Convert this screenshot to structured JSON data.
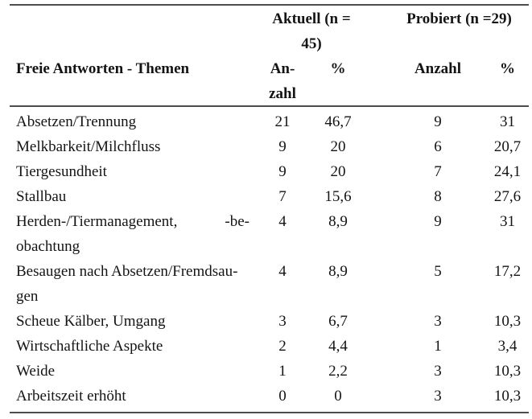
{
  "colors": {
    "border": "#4d4d4d",
    "text": "#141414",
    "background": "#ffffff"
  },
  "table": {
    "title_col_header": "Freie Antworten - Themen",
    "group_headers": {
      "aktuell": "Aktuell (n =\n45)",
      "probiert": "Probiert (n =29)"
    },
    "sub_headers": {
      "aktuell_anzahl": "An-\nzahl",
      "aktuell_pct": "%",
      "probiert_anzahl": "Anzahl",
      "probiert_pct": "%"
    },
    "rows": [
      {
        "label_lines": [
          [
            "Absetzen/Trennung"
          ]
        ],
        "aktuell_anzahl": "21",
        "aktuell_pct": "46,7",
        "probiert_anzahl": "9",
        "probiert_pct": "31"
      },
      {
        "label_lines": [
          [
            "Melkbarkeit/Milchfluss"
          ]
        ],
        "aktuell_anzahl": "9",
        "aktuell_pct": "20",
        "probiert_anzahl": "6",
        "probiert_pct": "20,7"
      },
      {
        "label_lines": [
          [
            "Tiergesundheit"
          ]
        ],
        "aktuell_anzahl": "9",
        "aktuell_pct": "20",
        "probiert_anzahl": "7",
        "probiert_pct": "24,1"
      },
      {
        "label_lines": [
          [
            "Stallbau"
          ]
        ],
        "aktuell_anzahl": "7",
        "aktuell_pct": "15,6",
        "probiert_anzahl": "8",
        "probiert_pct": "27,6"
      },
      {
        "label_lines": [
          [
            "Herden-/Tiermanagement,",
            "-be-"
          ],
          [
            "obachtung"
          ]
        ],
        "aktuell_anzahl": "4",
        "aktuell_pct": "8,9",
        "probiert_anzahl": "9",
        "probiert_pct": "31"
      },
      {
        "label_lines": [
          [
            "Besaugen nach Absetzen/Fremdsau-"
          ],
          [
            "gen"
          ]
        ],
        "aktuell_anzahl": "4",
        "aktuell_pct": "8,9",
        "probiert_anzahl": "5",
        "probiert_pct": "17,2"
      },
      {
        "label_lines": [
          [
            "Scheue Kälber, Umgang"
          ]
        ],
        "aktuell_anzahl": "3",
        "aktuell_pct": "6,7",
        "probiert_anzahl": "3",
        "probiert_pct": "10,3"
      },
      {
        "label_lines": [
          [
            "Wirtschaftliche Aspekte"
          ]
        ],
        "aktuell_anzahl": "2",
        "aktuell_pct": "4,4",
        "probiert_anzahl": "1",
        "probiert_pct": "3,4"
      },
      {
        "label_lines": [
          [
            "Weide"
          ]
        ],
        "aktuell_anzahl": "1",
        "aktuell_pct": "2,2",
        "probiert_anzahl": "3",
        "probiert_pct": "10,3"
      },
      {
        "label_lines": [
          [
            "Arbeitszeit erhöht"
          ]
        ],
        "aktuell_anzahl": "0",
        "aktuell_pct": "0",
        "probiert_anzahl": "3",
        "probiert_pct": "10,3"
      }
    ]
  }
}
